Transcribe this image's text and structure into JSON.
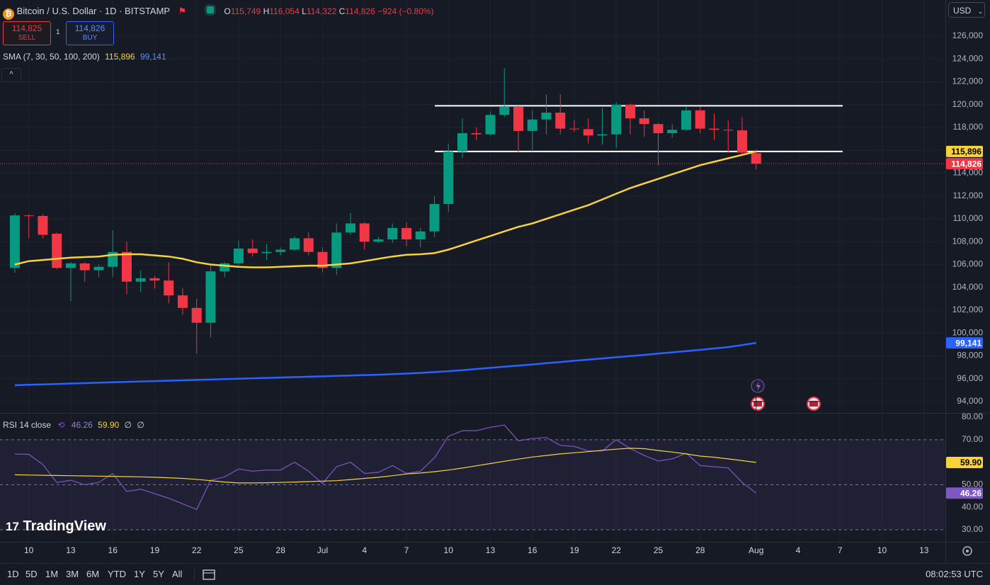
{
  "toolbar": {
    "currency": "USD"
  },
  "header": {
    "symbol": "Bitcoin / U.S. Dollar · 1D · BITSTAMP",
    "open_label": "O",
    "open": "115,749",
    "high_label": "H",
    "high": "116,054",
    "low_label": "L",
    "low": "114,322",
    "close_label": "C",
    "close": "114,826",
    "change": "−924 (−0.80%)"
  },
  "trade": {
    "sell_price": "114,825",
    "sell": "SELL",
    "qty": "1",
    "buy_price": "114,826",
    "buy": "BUY"
  },
  "indicator": {
    "name": "SMA (7, 30, 50, 100, 200)"
  },
  "logo": "TradingView",
  "bottom_bar": {
    "ranges": [
      "1D",
      "5D",
      "1M",
      "3M",
      "6M",
      "YTD",
      "1Y",
      "5Y",
      "All"
    ],
    "time": "08:02:53 UTC"
  },
  "chart_data": [
    {
      "type": "candlestick",
      "up_color": "#089981",
      "down_color": "#f23645",
      "open": [
        105700,
        110300,
        110250,
        108700,
        105700,
        106100,
        105500,
        105800,
        107100,
        104500,
        104800,
        104600,
        103300,
        102200,
        100900,
        105400,
        106100,
        107400,
        107000,
        107100,
        107300,
        108300,
        107100,
        105700,
        108800,
        109600,
        108000,
        108200,
        109200,
        108200,
        108900,
        111300,
        115900,
        117500,
        117400,
        119100,
        119800,
        117700,
        118700,
        119300,
        117900,
        117850,
        117300,
        117400,
        120000,
        118800,
        118300,
        117500,
        117800,
        119500,
        117900,
        117800,
        117750,
        115749
      ],
      "high": [
        110500,
        110400,
        110400,
        108800,
        106200,
        106200,
        106000,
        109000,
        108000,
        105500,
        105000,
        106200,
        103900,
        103000,
        106000,
        106200,
        108100,
        108200,
        107800,
        107500,
        108500,
        108800,
        107500,
        109600,
        110500,
        109700,
        108400,
        109600,
        109700,
        109200,
        112000,
        116600,
        118800,
        118000,
        119400,
        123200,
        119900,
        119500,
        120900,
        120900,
        118700,
        118800,
        119700,
        120200,
        120100,
        119500,
        118400,
        118300,
        119800,
        119800,
        119200,
        118600,
        118900,
        116054
      ],
      "low": [
        105300,
        108300,
        108300,
        105600,
        102800,
        104500,
        104900,
        104900,
        103400,
        103600,
        103900,
        102600,
        101600,
        98200,
        99600,
        104900,
        105900,
        106700,
        106400,
        106800,
        107200,
        106800,
        105300,
        105100,
        108600,
        107300,
        107900,
        107900,
        107600,
        107500,
        108400,
        110600,
        115300,
        116900,
        117300,
        118900,
        115800,
        115900,
        117400,
        117400,
        117600,
        116600,
        116500,
        116200,
        117400,
        117200,
        114700,
        117100,
        117700,
        117500,
        116900,
        115800,
        115700,
        114322
      ],
      "close": [
        110300,
        110250,
        108600,
        105700,
        106100,
        105500,
        105800,
        107100,
        104500,
        104800,
        104600,
        103300,
        102200,
        100900,
        105400,
        106100,
        107400,
        107000,
        107100,
        107300,
        108300,
        107100,
        105700,
        108800,
        109600,
        108000,
        108200,
        109200,
        108200,
        108900,
        111300,
        115900,
        117500,
        117400,
        119100,
        119800,
        117700,
        118700,
        119300,
        117900,
        117850,
        117300,
        117400,
        120000,
        118800,
        118300,
        117500,
        117800,
        119500,
        117900,
        117800,
        117750,
        115800,
        114826
      ],
      "close_label": "114,826",
      "series": [
        {
          "color": "#f7d23a",
          "text_color": "#000000",
          "last_label": "115,896",
          "values": [
            106000,
            106300,
            106400,
            106500,
            106600,
            106650,
            106700,
            106850,
            106900,
            106900,
            106800,
            106700,
            106500,
            106200,
            106000,
            105900,
            105800,
            105750,
            105750,
            105800,
            105850,
            105900,
            105900,
            106000,
            106100,
            106300,
            106500,
            106700,
            106850,
            106900,
            107000,
            107300,
            107700,
            108100,
            108500,
            108900,
            109300,
            109600,
            110000,
            110400,
            110800,
            111200,
            111700,
            112200,
            112700,
            113100,
            113500,
            113900,
            114300,
            114700,
            115000,
            115300,
            115600,
            115896
          ]
        },
        {
          "color": "#2962ff",
          "text_color": "#ffffff",
          "last_label": "99,141",
          "values": [
            95430,
            95470,
            95500,
            95540,
            95580,
            95610,
            95650,
            95690,
            95720,
            95760,
            95790,
            95830,
            95860,
            95900,
            95930,
            95970,
            96000,
            96040,
            96070,
            96110,
            96140,
            96180,
            96210,
            96250,
            96280,
            96320,
            96350,
            96400,
            96450,
            96510,
            96580,
            96660,
            96750,
            96850,
            96950,
            97050,
            97150,
            97250,
            97360,
            97460,
            97570,
            97670,
            97780,
            97880,
            97990,
            98090,
            98200,
            98310,
            98420,
            98530,
            98650,
            98770,
            98950,
            99141
          ]
        }
      ],
      "levels": [
        119900,
        115900
      ],
      "ylim": [
        93008,
        129163
      ],
      "yticks": [
        {
          "value": 94000,
          "label": "94,000"
        },
        {
          "value": 96000,
          "label": "96,000"
        },
        {
          "value": 98000,
          "label": "98,000"
        },
        {
          "value": 100000,
          "label": "100,000"
        },
        {
          "value": 102000,
          "label": "102,000"
        },
        {
          "value": 104000,
          "label": "104,000"
        },
        {
          "value": 106000,
          "label": "106,000"
        },
        {
          "value": 108000,
          "label": "108,000"
        },
        {
          "value": 110000,
          "label": "110,000"
        },
        {
          "value": 112000,
          "label": "112,000"
        },
        {
          "value": 114000,
          "label": "114,000"
        },
        {
          "value": 116000,
          "label": "116,000"
        },
        {
          "value": 118000,
          "label": "118,000"
        },
        {
          "value": 120000,
          "label": "120,000"
        },
        {
          "value": 122000,
          "label": "122,000"
        },
        {
          "value": 124000,
          "label": "124,000"
        },
        {
          "value": 126000,
          "label": "126,000"
        }
      ],
      "xlim": [
        -1.06,
        66.53
      ],
      "xticks": [
        {
          "value": 1,
          "label": "10"
        },
        {
          "value": 4,
          "label": "13"
        },
        {
          "value": 7,
          "label": "16"
        },
        {
          "value": 10,
          "label": "19"
        },
        {
          "value": 13,
          "label": "22"
        },
        {
          "value": 16,
          "label": "25"
        },
        {
          "value": 19,
          "label": "28"
        },
        {
          "value": 22,
          "label": "Jul"
        },
        {
          "value": 25,
          "label": "4"
        },
        {
          "value": 28,
          "label": "7"
        },
        {
          "value": 31,
          "label": "10"
        },
        {
          "value": 34,
          "label": "13"
        },
        {
          "value": 37,
          "label": "16"
        },
        {
          "value": 40,
          "label": "19"
        },
        {
          "value": 43,
          "label": "22"
        },
        {
          "value": 46,
          "label": "25"
        },
        {
          "value": 49,
          "label": "28"
        },
        {
          "value": 53,
          "label": "Aug"
        },
        {
          "value": 56,
          "label": "4"
        },
        {
          "value": 59,
          "label": "7"
        },
        {
          "value": 62,
          "label": "10"
        },
        {
          "value": 65,
          "label": "13"
        }
      ],
      "grid": true
    },
    {
      "type": "line",
      "title": "RSI 14 close",
      "extra": [
        "∅",
        "∅"
      ],
      "series": [
        {
          "color": "#7e57c2",
          "text_color": "#ffffff",
          "last_label": "46.26",
          "values": [
            63.6,
            63.5,
            59,
            51,
            52,
            50,
            51,
            55,
            47,
            48,
            46,
            44,
            41.5,
            39,
            52,
            53.5,
            57,
            56,
            56.5,
            56.5,
            60,
            56,
            50.5,
            58,
            60,
            55,
            55.5,
            58.5,
            55,
            56,
            62,
            71.5,
            74,
            74,
            75.5,
            76.5,
            69.5,
            70.5,
            71,
            67.5,
            67,
            65,
            65,
            70,
            66,
            63,
            60.5,
            61.5,
            64,
            58.5,
            58,
            57.5,
            51,
            46.26
          ]
        },
        {
          "color": "#f7d23a",
          "text_color": "#000000",
          "last_label": "59.90",
          "values": [
            54.4,
            54.3,
            54.2,
            54.1,
            54,
            53.9,
            53.8,
            53.7,
            53.6,
            53.5,
            53.3,
            53.1,
            52.8,
            52.4,
            51.8,
            51.2,
            50.8,
            50.8,
            50.9,
            51,
            51.2,
            51.4,
            51.6,
            51.8,
            52.3,
            52.8,
            53.3,
            54,
            54.8,
            55.2,
            55.8,
            56.5,
            57.4,
            58.4,
            59.4,
            60.4,
            61.4,
            62.3,
            63,
            63.7,
            64.2,
            64.7,
            65.3,
            65.8,
            66.2,
            66,
            65.2,
            64.5,
            63.7,
            62.7,
            62.2,
            61.5,
            60.7,
            59.9
          ]
        }
      ],
      "bands": [
        70,
        50,
        30
      ],
      "ylim": [
        24.65,
        81.9
      ],
      "yticks": [
        {
          "value": 30,
          "label": "30.00"
        },
        {
          "value": 40,
          "label": "40.00"
        },
        {
          "value": 50,
          "label": "50.00"
        },
        {
          "value": 70,
          "label": "70.00"
        },
        {
          "value": 80,
          "label": "80.00"
        }
      ],
      "grid": true
    }
  ]
}
